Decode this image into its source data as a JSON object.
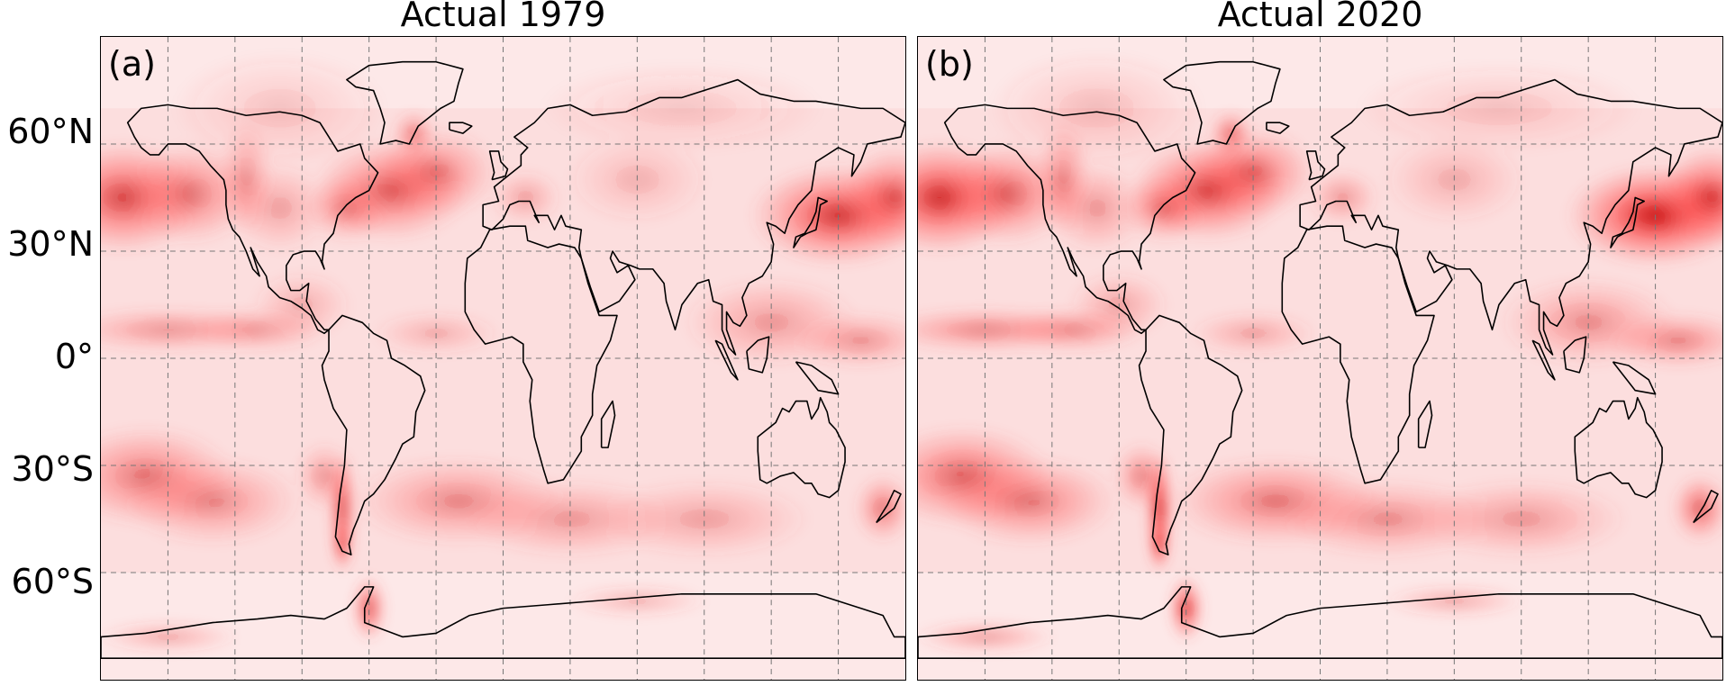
{
  "panels": [
    {
      "letter": "(a)",
      "title": "Actual 1979",
      "intensity": 0.85
    },
    {
      "letter": "(b)",
      "title": "Actual 2020",
      "intensity": 1.0
    }
  ],
  "lat_labels": [
    "60°N",
    "30°N",
    "0°",
    "30°S",
    "60°S"
  ],
  "lat_values": [
    60,
    30,
    0,
    -30,
    -60
  ],
  "lon_grid": [
    -150,
    -120,
    -90,
    -60,
    -30,
    0,
    30,
    60,
    90,
    120,
    150
  ],
  "colormap": {
    "low": "#ffffff",
    "mid": "#ff3a3a",
    "high": "#5a0000"
  },
  "map_extent": {
    "lon": [
      -180,
      180
    ],
    "lat": [
      -90,
      90
    ]
  }
}
